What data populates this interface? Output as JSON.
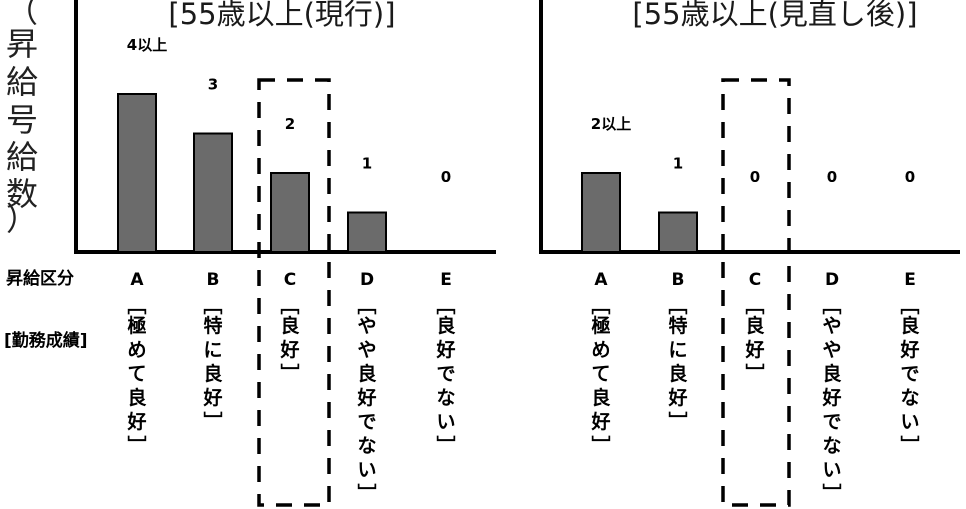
{
  "y_axis_label": [
    "（",
    "昇",
    "給",
    "号",
    "給",
    "数",
    "）"
  ],
  "row_labels": {
    "category": "昇給区分",
    "performance": "[勤務成績]"
  },
  "chart_data": [
    {
      "type": "bar",
      "title": "[55歳以上(現行)]",
      "categories": [
        "A",
        "B",
        "C",
        "D",
        "E"
      ],
      "values": [
        4,
        3,
        2,
        1,
        0
      ],
      "value_labels": [
        "4以上",
        "3",
        "2",
        "1",
        "0"
      ],
      "ylim": [
        0,
        5
      ],
      "bar_color": "#6b6b6b",
      "highlight_category": "C",
      "performance": [
        "[極めて良好]",
        "[特に良好]",
        "[良好]",
        "[やや良好でない]",
        "[良好でない]"
      ]
    },
    {
      "type": "bar",
      "title": "[55歳以上(見直し後)]",
      "categories": [
        "A",
        "B",
        "C",
        "D",
        "E"
      ],
      "values": [
        2,
        1,
        0,
        0,
        0
      ],
      "value_labels": [
        "2以上",
        "1",
        "0",
        "0",
        "0"
      ],
      "ylim": [
        0,
        5
      ],
      "bar_color": "#6b6b6b",
      "highlight_category": "C",
      "performance": [
        "[極めて良好]",
        "[特に良好]",
        "[良好]",
        "[やや良好でない]",
        "[良好でない]"
      ]
    }
  ]
}
